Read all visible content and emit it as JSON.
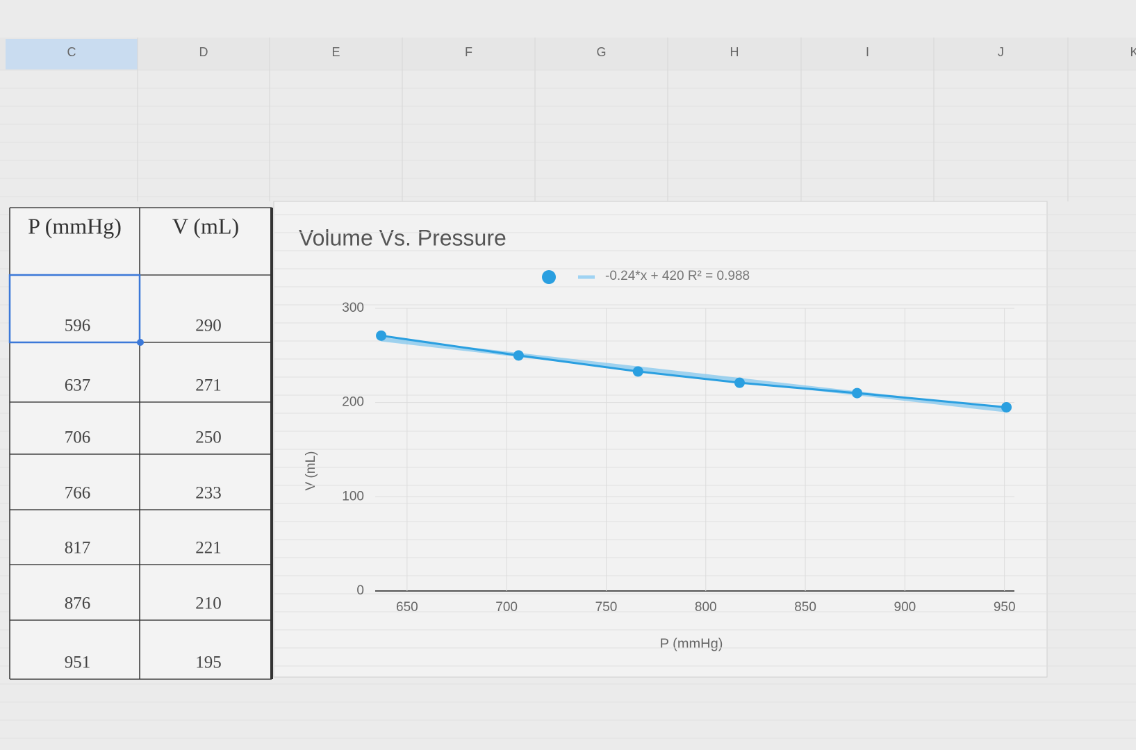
{
  "columns": [
    "C",
    "D",
    "E",
    "F",
    "G",
    "H",
    "I",
    "J",
    "K"
  ],
  "table": {
    "header": [
      "P (mmHg)",
      "V (mL)"
    ],
    "rows": [
      [
        "596",
        "290"
      ],
      [
        "637",
        "271"
      ],
      [
        "706",
        "250"
      ],
      [
        "766",
        "233"
      ],
      [
        "817",
        "221"
      ],
      [
        "876",
        "210"
      ],
      [
        "951",
        "195"
      ]
    ]
  },
  "chart_data": {
    "type": "scatter",
    "title": "Volume Vs. Pressure",
    "x_label": "P (mmHg)",
    "y_label": "V (mL)",
    "x": [
      637,
      706,
      766,
      817,
      876,
      951
    ],
    "series": [
      {
        "name": "",
        "color": "#2a9fe0",
        "values": [
          271,
          250,
          233,
          221,
          210,
          195
        ]
      }
    ],
    "trendline": {
      "name": "-0.24*x + 420 R² = 0.988",
      "color": "#7cc4ee",
      "x": [
        637,
        951
      ],
      "values": [
        267.1,
        191.8
      ]
    },
    "xlim": [
      634,
      955
    ],
    "ylim": [
      0,
      300
    ],
    "xticks": [
      650,
      700,
      750,
      800,
      850,
      900,
      950
    ],
    "yticks": [
      0,
      100,
      200,
      300
    ],
    "grid": true
  }
}
